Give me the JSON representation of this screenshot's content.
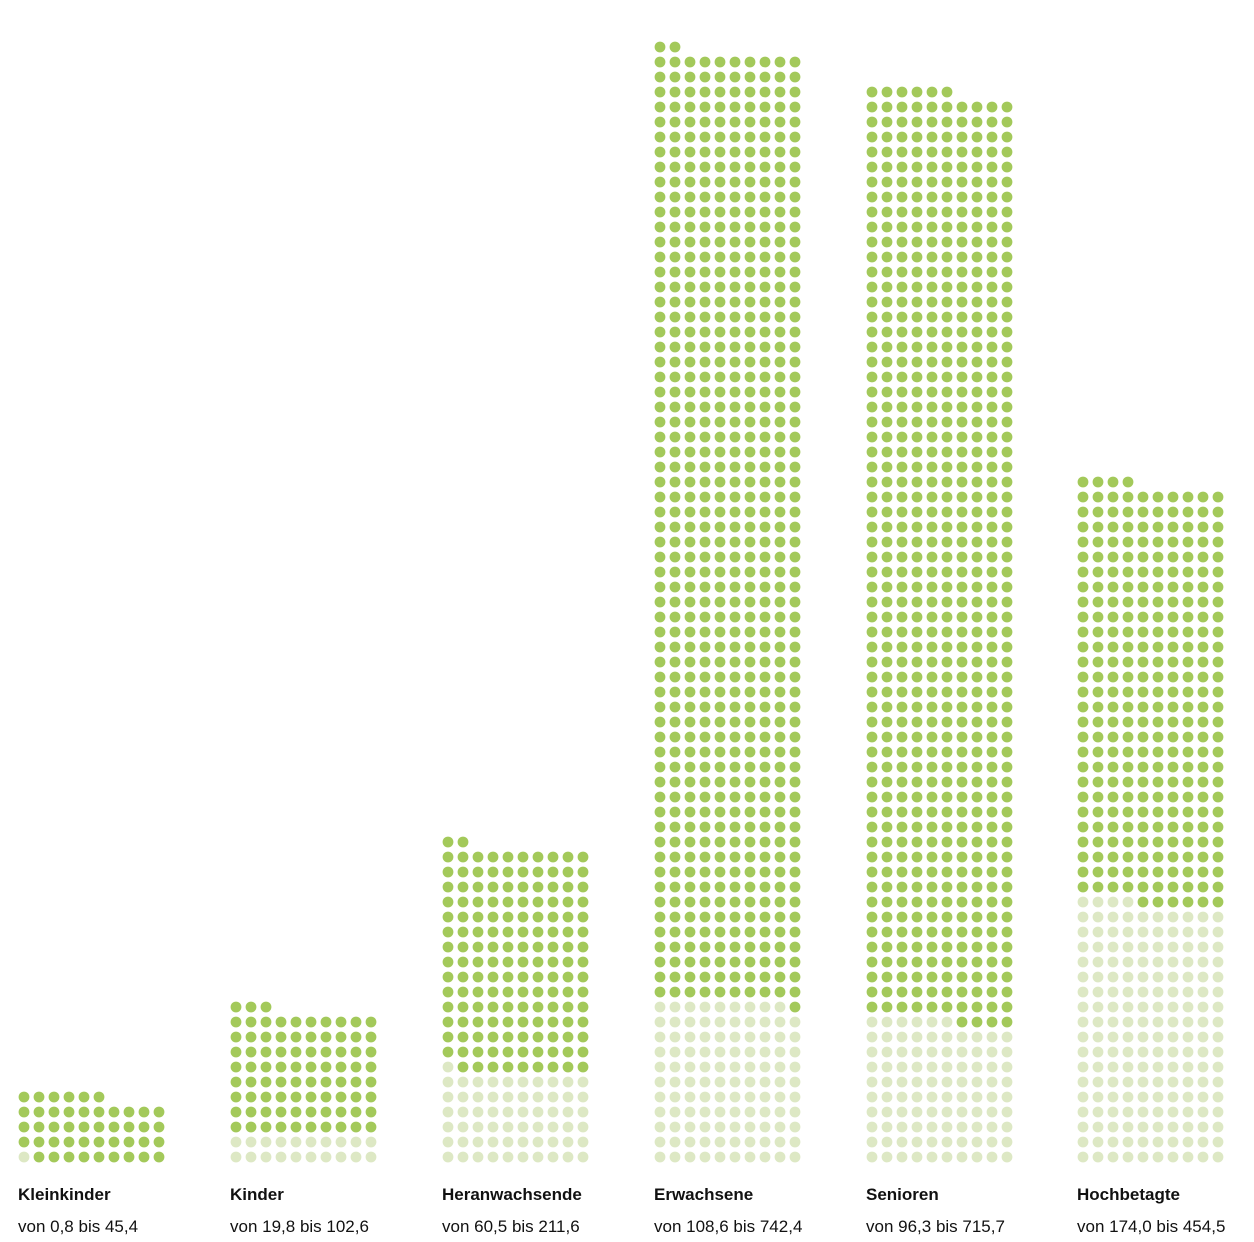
{
  "chart_data": {
    "type": "dot-bar",
    "unit": "dots",
    "colors": {
      "dark": "#a3c95a",
      "light": "#dde8c4"
    },
    "categories": [
      {
        "name": "Kleinkinder",
        "range_label": "von 0,8 bis 45,4",
        "min": 0.8,
        "max": 45.4,
        "dark_dots": 45,
        "light_dots": 1
      },
      {
        "name": "Kinder",
        "range_label": "von 19,8 bis 102,6",
        "min": 19.8,
        "max": 102.6,
        "dark_dots": 83,
        "light_dots": 20
      },
      {
        "name": "Heranwachsende",
        "range_label": "von 60,5 bis 211,6",
        "min": 60.5,
        "max": 211.6,
        "dark_dots": 151,
        "light_dots": 61
      },
      {
        "name": "Erwachsene",
        "range_label": "von 108,6 bis 742,4",
        "min": 108.6,
        "max": 742.4,
        "dark_dots": 633,
        "light_dots": 109
      },
      {
        "name": "Senioren",
        "range_label": "von 96,3 bis 715,7",
        "min": 96.3,
        "max": 715.7,
        "dark_dots": 620,
        "light_dots": 96
      },
      {
        "name": "Hochbetagte",
        "range_label": "von 174,0 bis 454,5",
        "min": 174.0,
        "max": 454.5,
        "dark_dots": 280,
        "light_dots": 174
      }
    ]
  }
}
